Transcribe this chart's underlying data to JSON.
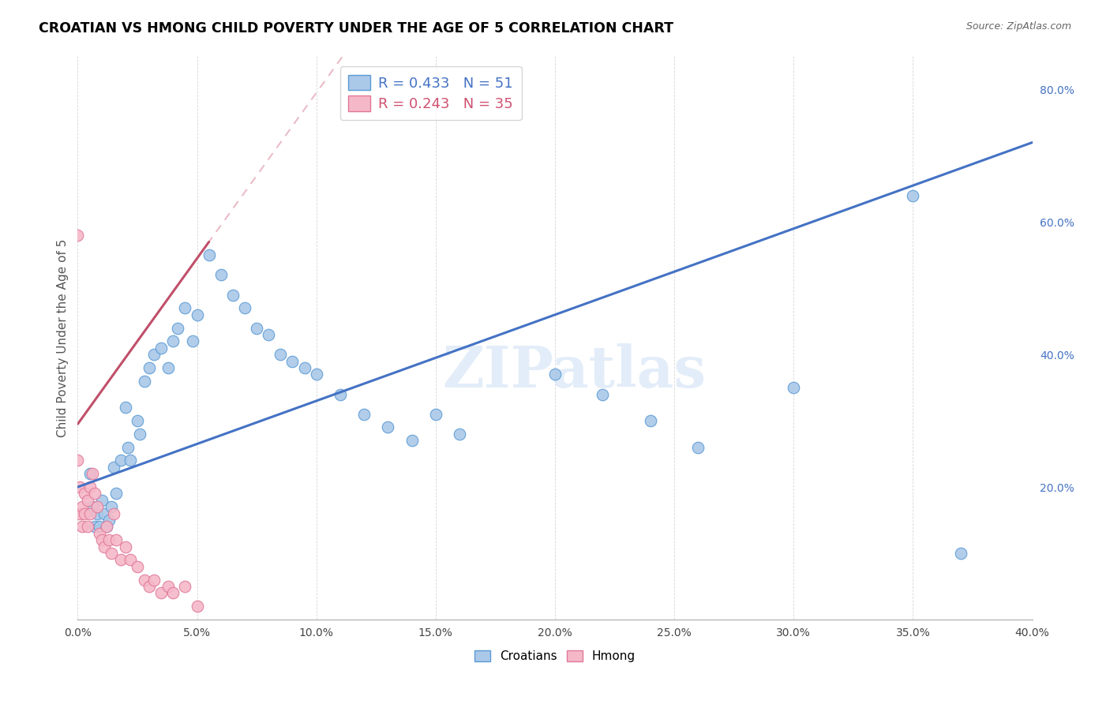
{
  "title": "CROATIAN VS HMONG CHILD POVERTY UNDER THE AGE OF 5 CORRELATION CHART",
  "source": "Source: ZipAtlas.com",
  "ylabel": "Child Poverty Under the Age of 5",
  "xlim": [
    0.0,
    0.4
  ],
  "ylim": [
    0.0,
    0.85
  ],
  "xticks": [
    0.0,
    0.05,
    0.1,
    0.15,
    0.2,
    0.25,
    0.3,
    0.35,
    0.4
  ],
  "yticks_right": [
    0.2,
    0.4,
    0.6,
    0.8
  ],
  "legend_r_croatian": "R = 0.433",
  "legend_n_croatian": "N = 51",
  "legend_r_hmong": "R = 0.243",
  "legend_n_hmong": "N = 35",
  "croatian_color": "#aac8e8",
  "hmong_color": "#f5b8c8",
  "croatian_edge": "#5b9bd5",
  "hmong_edge": "#e07898",
  "trendline_croatian_color": "#4472c4",
  "trendline_hmong_color": "#c0506a",
  "watermark": "ZIPatlas",
  "croatian_trendline_x0": 0.0,
  "croatian_trendline_y0": 0.2,
  "croatian_trendline_x1": 0.4,
  "croatian_trendline_y1": 0.72,
  "hmong_trendline_x0": 0.0,
  "hmong_trendline_y0": 0.295,
  "hmong_trendline_x1": 0.055,
  "hmong_trendline_y1": 0.57,
  "croatian_x": [
    0.005,
    0.006,
    0.007,
    0.008,
    0.009,
    0.01,
    0.011,
    0.012,
    0.013,
    0.014,
    0.015,
    0.016,
    0.018,
    0.02,
    0.021,
    0.022,
    0.025,
    0.026,
    0.028,
    0.03,
    0.032,
    0.035,
    0.038,
    0.04,
    0.042,
    0.045,
    0.048,
    0.05,
    0.055,
    0.06,
    0.065,
    0.07,
    0.075,
    0.08,
    0.085,
    0.09,
    0.095,
    0.1,
    0.11,
    0.12,
    0.13,
    0.14,
    0.15,
    0.16,
    0.2,
    0.22,
    0.24,
    0.26,
    0.3,
    0.35,
    0.37
  ],
  "croatian_y": [
    0.22,
    0.17,
    0.14,
    0.16,
    0.14,
    0.18,
    0.16,
    0.14,
    0.15,
    0.17,
    0.23,
    0.19,
    0.24,
    0.32,
    0.26,
    0.24,
    0.3,
    0.28,
    0.36,
    0.38,
    0.4,
    0.41,
    0.38,
    0.42,
    0.44,
    0.47,
    0.42,
    0.46,
    0.55,
    0.52,
    0.49,
    0.47,
    0.44,
    0.43,
    0.4,
    0.39,
    0.38,
    0.37,
    0.34,
    0.31,
    0.29,
    0.27,
    0.31,
    0.28,
    0.37,
    0.34,
    0.3,
    0.26,
    0.35,
    0.64,
    0.1
  ],
  "hmong_x": [
    0.0,
    0.0,
    0.001,
    0.001,
    0.002,
    0.002,
    0.003,
    0.003,
    0.004,
    0.004,
    0.005,
    0.005,
    0.006,
    0.007,
    0.008,
    0.009,
    0.01,
    0.011,
    0.012,
    0.013,
    0.014,
    0.015,
    0.016,
    0.018,
    0.02,
    0.022,
    0.025,
    0.028,
    0.03,
    0.032,
    0.035,
    0.038,
    0.04,
    0.045,
    0.05
  ],
  "hmong_y": [
    0.58,
    0.24,
    0.2,
    0.16,
    0.17,
    0.14,
    0.19,
    0.16,
    0.18,
    0.14,
    0.2,
    0.16,
    0.22,
    0.19,
    0.17,
    0.13,
    0.12,
    0.11,
    0.14,
    0.12,
    0.1,
    0.16,
    0.12,
    0.09,
    0.11,
    0.09,
    0.08,
    0.06,
    0.05,
    0.06,
    0.04,
    0.05,
    0.04,
    0.05,
    0.02
  ]
}
